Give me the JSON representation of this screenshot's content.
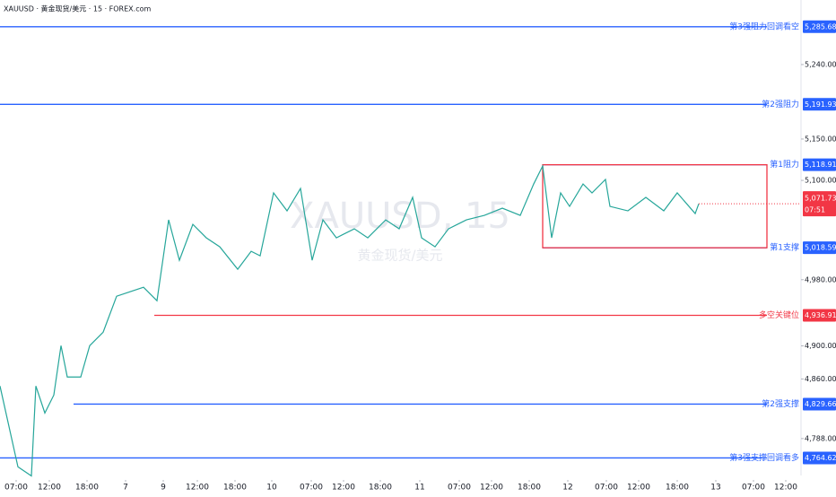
{
  "chart_data": {
    "type": "line",
    "header": "XAUUSD · 黄金现货/美元 · 15 · FOREX.com",
    "watermark": "XAUUSD, 15",
    "watermark_subtitle": "黄金现货/美元",
    "x": [
      0,
      20,
      35,
      40,
      50,
      60,
      68,
      75,
      90,
      100,
      115,
      130,
      145,
      160,
      175,
      188,
      200,
      215,
      230,
      245,
      265,
      280,
      290,
      305,
      320,
      335,
      348,
      360,
      375,
      395,
      410,
      430,
      445,
      460,
      470,
      485,
      500,
      520,
      540,
      560,
      580,
      595,
      605,
      615,
      625,
      635,
      650,
      660,
      675,
      680,
      700,
      720,
      740,
      755,
      775,
      779
    ],
    "values": [
      4851.5,
      4753.8,
      4742.9,
      4851.5,
      4818.9,
      4840.6,
      4900.3,
      4862.4,
      4862.4,
      4900.3,
      4916.6,
      4960,
      4965.5,
      4970.9,
      4954.6,
      5052.3,
      5003.5,
      5046.9,
      5030.6,
      5019.8,
      4992.6,
      5014.3,
      5008.9,
      5084.9,
      5063.2,
      5090.3,
      5003.5,
      5052.3,
      5030.6,
      5041.5,
      5030.6,
      5052.3,
      5041.5,
      5079.5,
      5030.6,
      5019.8,
      5041.5,
      5052.3,
      5057.7,
      5066.4,
      5057.7,
      5095.7,
      5117.4,
      5030.6,
      5084.9,
      5068.6,
      5095.7,
      5084.9,
      5101.2,
      5068.6,
      5063.2,
      5079.5,
      5063.2,
      5084.9,
      5059.9,
      5071.73
    ],
    "color": "#26a69a",
    "xlim": [
      0,
      893
    ],
    "xticks": [
      {
        "value": 18,
        "label": "07:00"
      },
      {
        "value": 55,
        "label": "12:00"
      },
      {
        "value": 97,
        "label": "18:00"
      },
      {
        "value": 140,
        "label": "7"
      },
      {
        "value": 182,
        "label": "9"
      },
      {
        "value": 220,
        "label": "12:00"
      },
      {
        "value": 262,
        "label": "18:00"
      },
      {
        "value": 303,
        "label": "10"
      },
      {
        "value": 347,
        "label": "07:00"
      },
      {
        "value": 383,
        "label": "12:00"
      },
      {
        "value": 424,
        "label": "18:00"
      },
      {
        "value": 468,
        "label": "11"
      },
      {
        "value": 512,
        "label": "07:00"
      },
      {
        "value": 548,
        "label": "12:00"
      },
      {
        "value": 590,
        "label": "18:00"
      },
      {
        "value": 633,
        "label": "12"
      },
      {
        "value": 676,
        "label": "07:00"
      },
      {
        "value": 712,
        "label": "12:00"
      },
      {
        "value": 755,
        "label": "18:00"
      },
      {
        "value": 798,
        "label": "13"
      },
      {
        "value": 840,
        "label": "07:00"
      },
      {
        "value": 876,
        "label": "12:00"
      }
    ],
    "ylim": [
      4738,
      5318
    ],
    "yticks": [
      {
        "value": 5240,
        "label": "5,240.00"
      },
      {
        "value": 5150,
        "label": "5,150.00"
      },
      {
        "value": 5100,
        "label": "5,100.00"
      },
      {
        "value": 4980,
        "label": "4,980.00"
      },
      {
        "value": 4900,
        "label": "4,900.00"
      },
      {
        "value": 4860,
        "label": "4,860.00"
      },
      {
        "value": 4788,
        "label": "4,788.00"
      }
    ],
    "levels": [
      {
        "label": "第3强阻力回调看空",
        "price": 5285.68,
        "price_label": "5,285.68",
        "color": "#2962ff"
      },
      {
        "label": "第2强阻力",
        "price": 5191.93,
        "price_label": "5,191.93",
        "color": "#2962ff"
      },
      {
        "label": "第1阻力",
        "price": 5118.91,
        "price_label": "5,118.91",
        "color": "#2962ff"
      },
      {
        "label": "第1支撑",
        "price": 5018.59,
        "price_label": "5,018.59",
        "color": "#2962ff"
      },
      {
        "label": "多空关键位",
        "price": 4936.91,
        "price_label": "4,936.91",
        "color": "#f23645"
      },
      {
        "label": "第2强支撑",
        "price": 4829.66,
        "price_label": "4,829.66",
        "color": "#2962ff"
      },
      {
        "label": "第3强支撑回调看多",
        "price": 4764.62,
        "price_label": "4,764.62",
        "color": "#2962ff"
      }
    ],
    "last_price": {
      "value": 5071.73,
      "label": "5,071.73",
      "countdown": "07:51",
      "color": "#f23645"
    }
  }
}
